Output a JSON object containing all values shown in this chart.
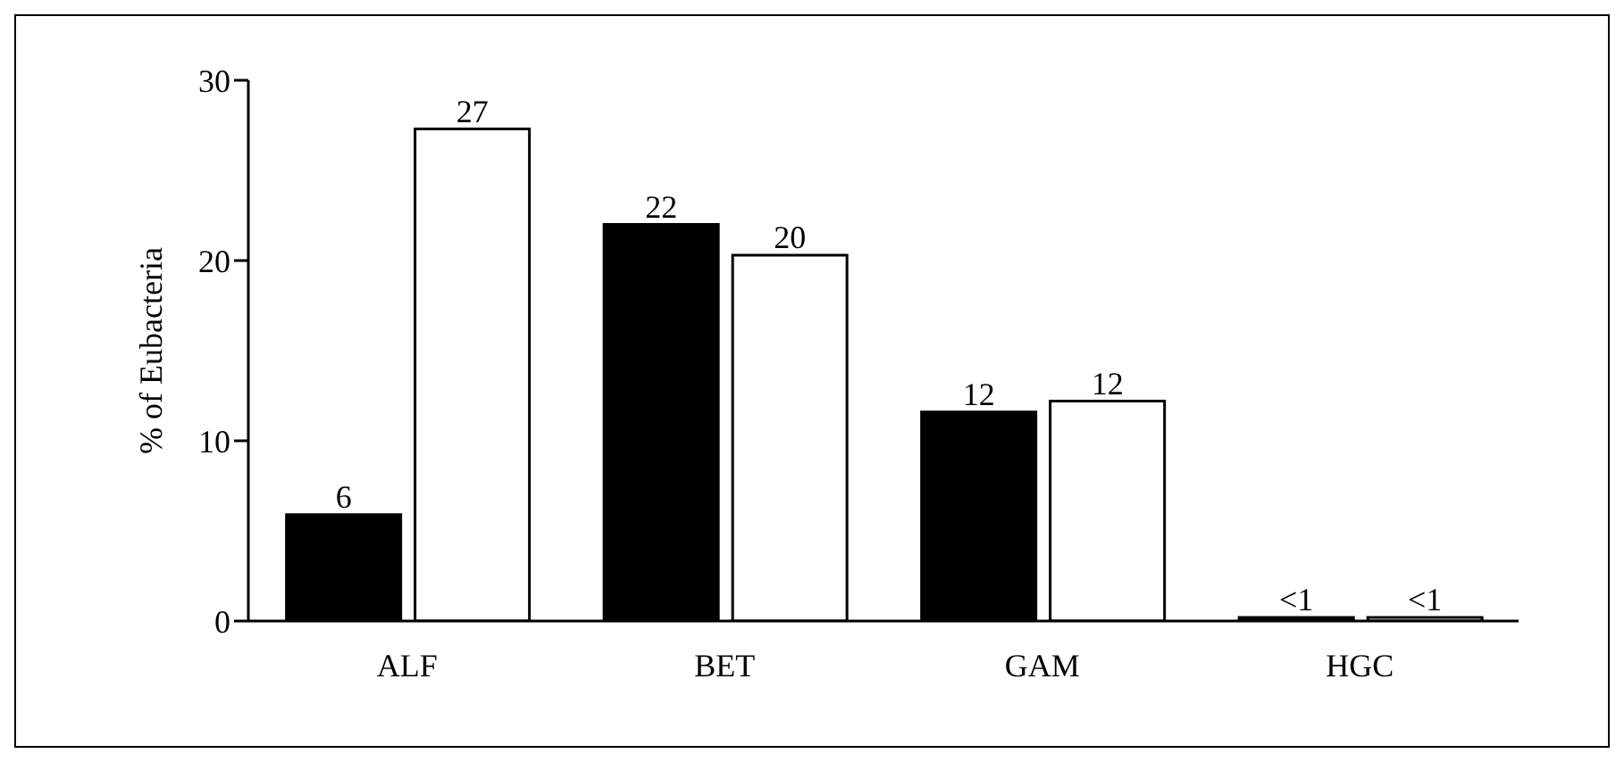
{
  "chart_data": {
    "type": "bar",
    "ylabel": "% of Eubacteria",
    "categories": [
      "ALF",
      "BET",
      "GAM",
      "HGC"
    ],
    "series": [
      {
        "color": "#000000",
        "values": [
          5.9,
          22.0,
          11.6,
          0.2
        ],
        "value_labels": [
          "6",
          "22",
          "12",
          "<1"
        ]
      },
      {
        "color": "#ffffff",
        "values": [
          27.3,
          20.3,
          12.2,
          0.2
        ],
        "value_labels": [
          "27",
          "20",
          "12",
          "<1"
        ]
      }
    ],
    "ylim": [
      0,
      30
    ],
    "yticks": [
      0,
      10,
      20,
      30
    ],
    "grid": false,
    "legend": false
  }
}
